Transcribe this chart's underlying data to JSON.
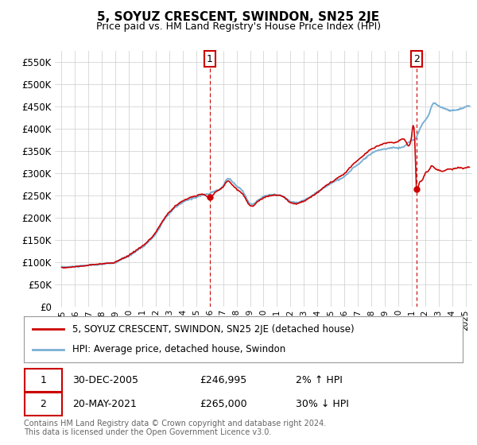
{
  "title": "5, SOYUZ CRESCENT, SWINDON, SN25 2JE",
  "subtitle": "Price paid vs. HM Land Registry's House Price Index (HPI)",
  "legend_line1": "5, SOYUZ CRESCENT, SWINDON, SN25 2JE (detached house)",
  "legend_line2": "HPI: Average price, detached house, Swindon",
  "footnote": "Contains HM Land Registry data © Crown copyright and database right 2024.\nThis data is licensed under the Open Government Licence v3.0.",
  "sale1_date": "30-DEC-2005",
  "sale1_price": "£246,995",
  "sale1_hpi": "2% ↑ HPI",
  "sale2_date": "20-MAY-2021",
  "sale2_price": "£265,000",
  "sale2_hpi": "30% ↓ HPI",
  "hpi_color": "#7ab0d4",
  "sale_color": "#cc0000",
  "marker1_x": 2006.0,
  "marker1_y": 246995,
  "marker2_x": 2021.38,
  "marker2_y": 265000,
  "ylim": [
    0,
    575000
  ],
  "yticks": [
    0,
    50000,
    100000,
    150000,
    200000,
    250000,
    300000,
    350000,
    400000,
    450000,
    500000,
    550000
  ],
  "xlim": [
    1994.5,
    2025.5
  ],
  "background_color": "#ffffff",
  "grid_color": "#cccccc",
  "vline1_x": 2006.0,
  "vline2_x": 2021.38
}
